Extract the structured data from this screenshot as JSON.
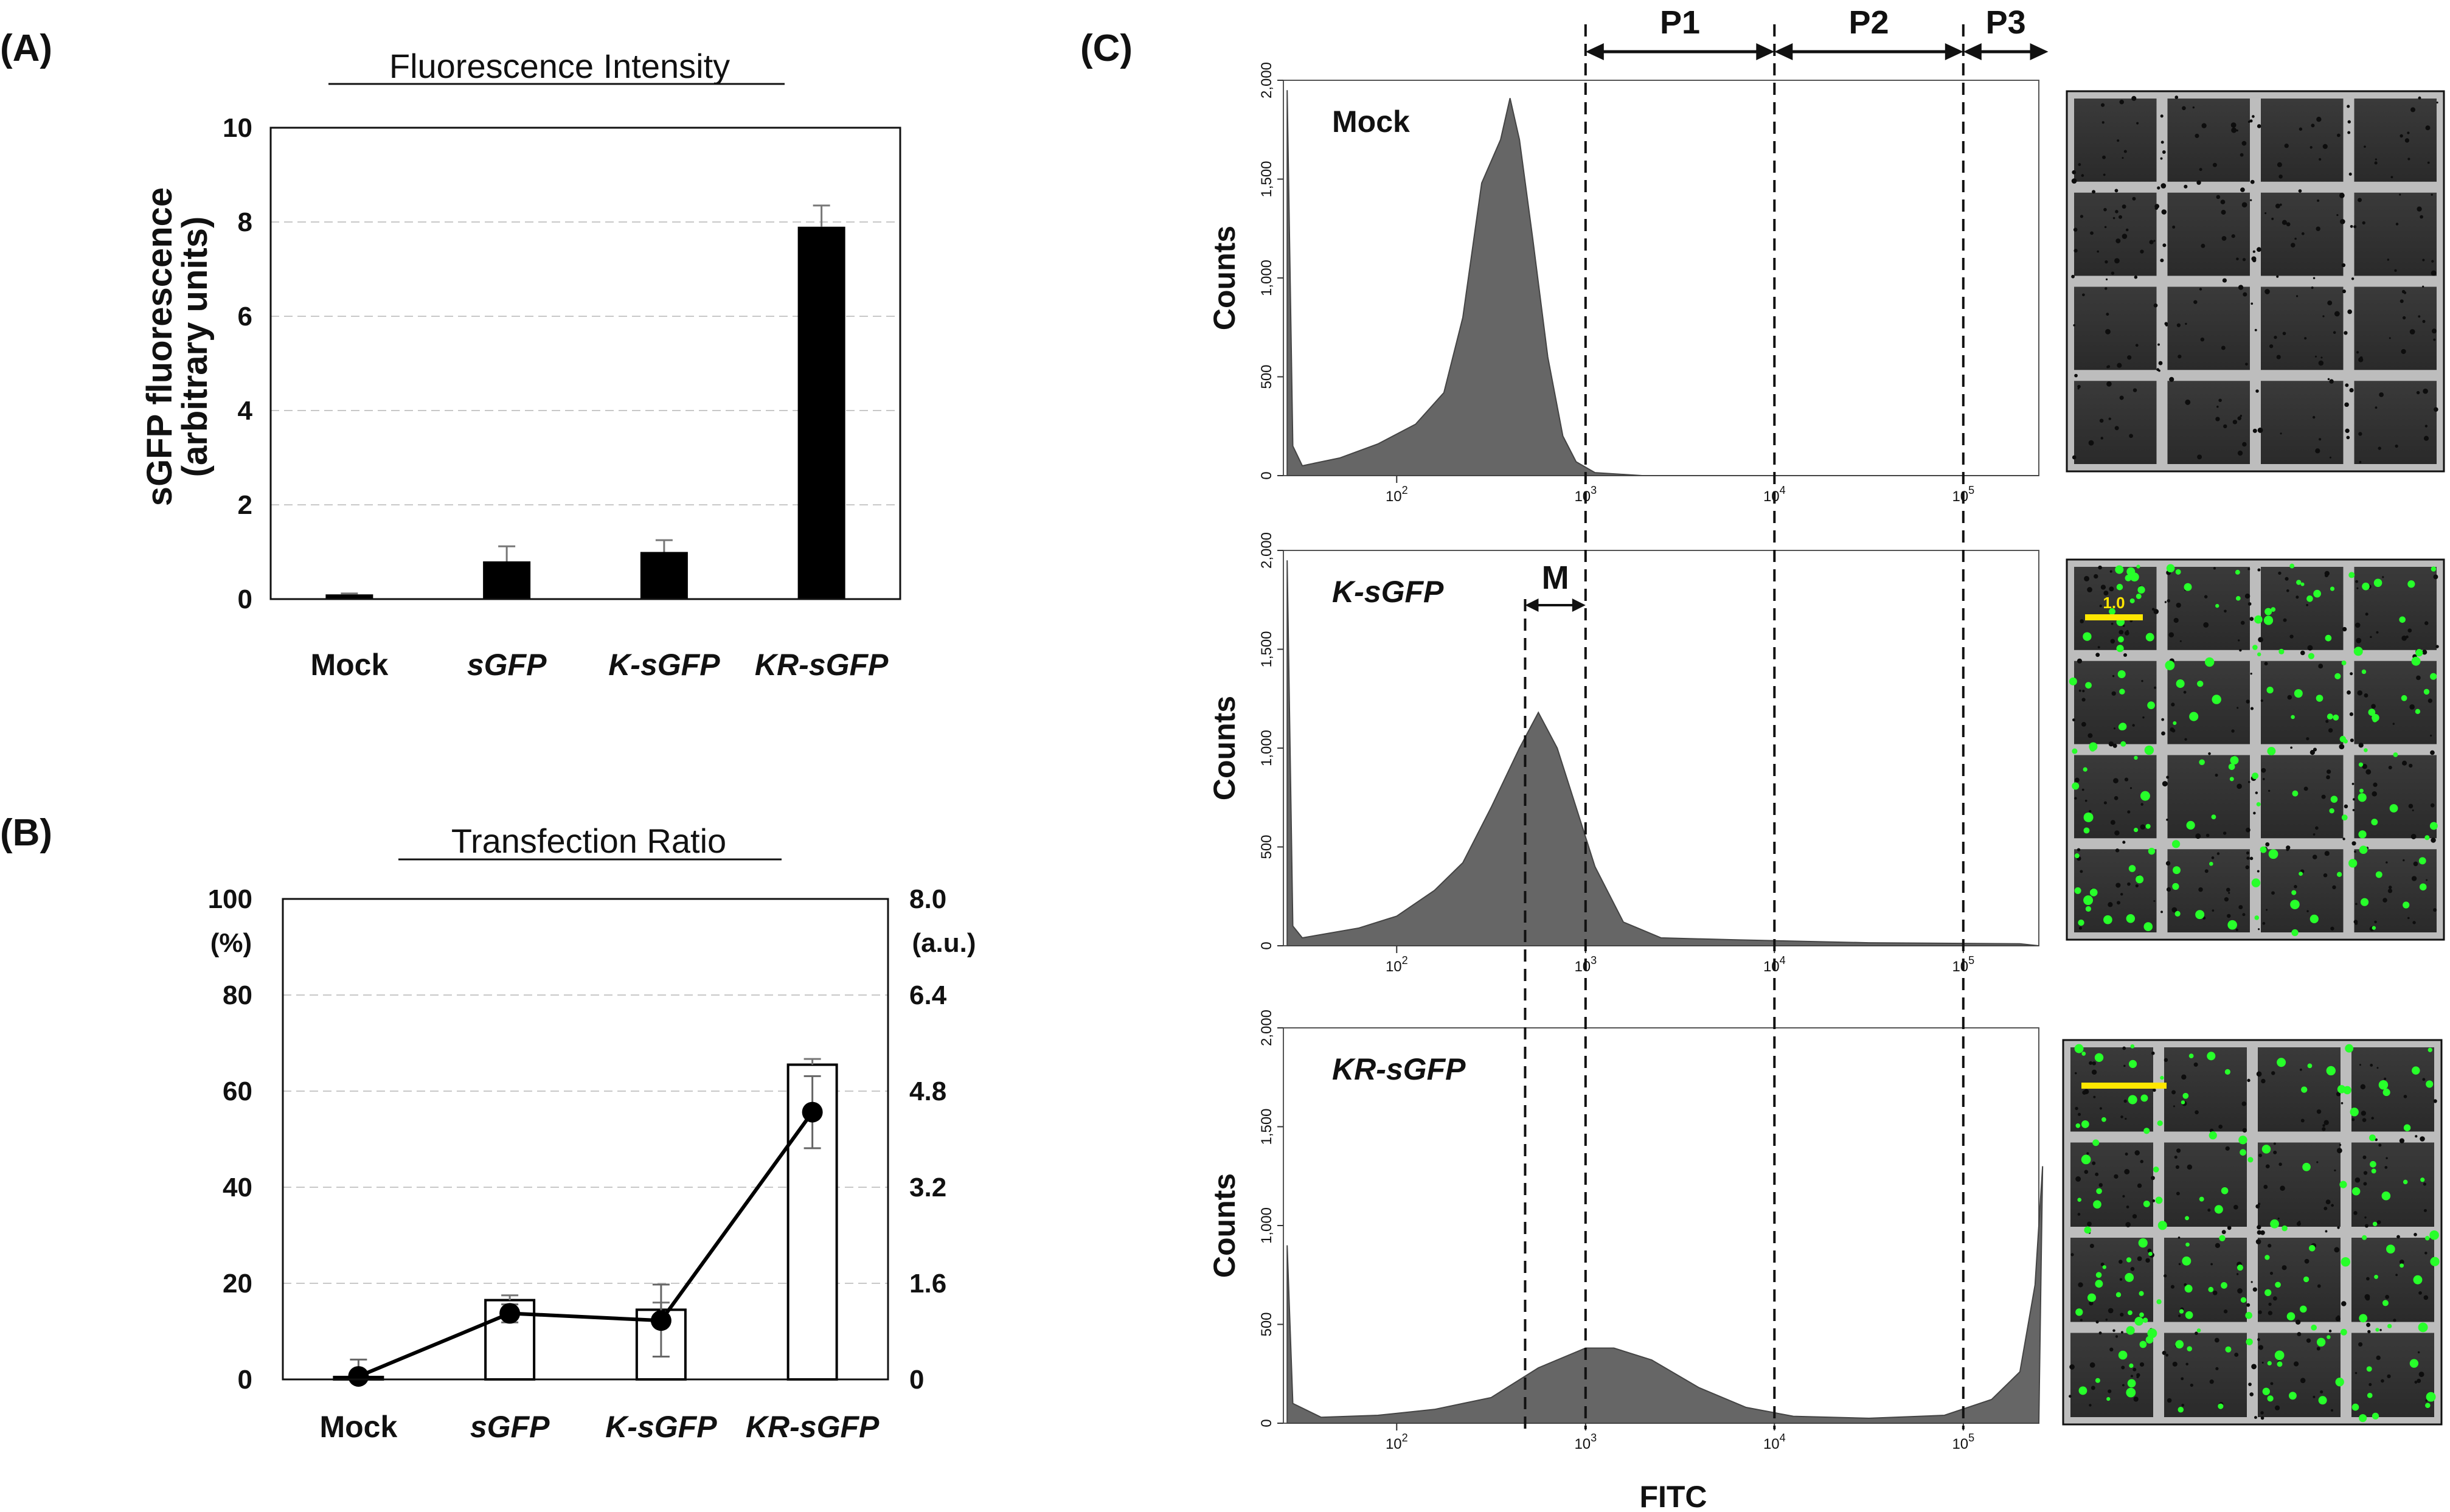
{
  "panels": {
    "A": {
      "label": "(A)",
      "chart_data": {
        "type": "bar",
        "title": "Fluorescence Intensity",
        "ylabel": "sGFP fluorescence",
        "ylabel2": "(arbitrary units)",
        "categories": [
          "Mock",
          "sGFP",
          "K-sGFP",
          "KR-sGFP"
        ],
        "values": [
          0.1,
          0.8,
          1.0,
          7.9
        ],
        "errors": [
          0.02,
          0.32,
          0.25,
          0.45
        ],
        "ylim": [
          0,
          10
        ],
        "yticks": [
          0,
          2,
          4,
          6,
          8,
          10
        ],
        "ytick_labels": [
          "0",
          "2",
          "4",
          "6",
          "8",
          "10"
        ],
        "grid": true
      }
    },
    "B": {
      "label": "(B)",
      "chart_data": {
        "type": "bar",
        "title": "Transfection Ratio",
        "categories": [
          "Mock",
          "sGFP",
          "K-sGFP",
          "KR-sGFP"
        ],
        "series": [
          {
            "name": "Transfection ratio (%)",
            "kind": "bar",
            "values": [
              0.5,
              16.5,
              14.5,
              65.5
            ],
            "errors": [
              0.3,
              1.0,
              1.5,
              1.2
            ]
          },
          {
            "name": "Fluorescence (a.u.)",
            "kind": "line",
            "values": [
              0.05,
              1.1,
              0.98,
              4.45
            ],
            "errors": [
              0.28,
              0.15,
              0.6,
              0.6
            ]
          }
        ],
        "ylim_left": [
          0,
          100
        ],
        "ylim_right": [
          0,
          8.0
        ],
        "yticks_left": [
          "0",
          "20",
          "40",
          "60",
          "80",
          "100"
        ],
        "yticks_right": [
          "0",
          "1.6",
          "3.2",
          "4.8",
          "6.4",
          "8.0"
        ],
        "left_unit": "(%)",
        "right_unit": "(a.u.)",
        "grid": true
      }
    },
    "C": {
      "label": "(C)",
      "chart_data": {
        "type": "area",
        "xlabel": "FITC",
        "ylabel": "Counts",
        "x_scale": "log",
        "xlim": [
          1.4,
          5.4
        ],
        "ylim": [
          0,
          2000
        ],
        "xticks": [
          {
            "base": "10",
            "exp": "2"
          },
          {
            "base": "10",
            "exp": "3"
          },
          {
            "base": "10",
            "exp": "4"
          },
          {
            "base": "10",
            "exp": "5"
          }
        ],
        "yticks": [
          "0",
          "500",
          "1,000",
          "1,500",
          "2,000"
        ],
        "gates": [
          {
            "name": "P1",
            "from_log": 3.0,
            "to_log": 4.0
          },
          {
            "name": "P2",
            "from_log": 4.0,
            "to_log": 5.0
          },
          {
            "name": "P3",
            "from_log": 5.0,
            "to_log": 5.45
          }
        ],
        "marker": {
          "name": "M",
          "from_log": 2.68,
          "to_log": 3.0
        },
        "histograms": [
          {
            "sample": "Mock",
            "italic": false,
            "points": [
              [
                1.42,
                1950
              ],
              [
                1.45,
                150
              ],
              [
                1.5,
                50
              ],
              [
                1.7,
                90
              ],
              [
                1.9,
                160
              ],
              [
                2.1,
                260
              ],
              [
                2.25,
                420
              ],
              [
                2.35,
                800
              ],
              [
                2.45,
                1480
              ],
              [
                2.55,
                1700
              ],
              [
                2.6,
                1910
              ],
              [
                2.65,
                1700
              ],
              [
                2.72,
                1200
              ],
              [
                2.8,
                600
              ],
              [
                2.88,
                200
              ],
              [
                2.95,
                70
              ],
              [
                3.05,
                15
              ],
              [
                3.3,
                0
              ],
              [
                5.4,
                0
              ]
            ]
          },
          {
            "sample": "K-sGFP",
            "italic": true,
            "points": [
              [
                1.42,
                1950
              ],
              [
                1.45,
                100
              ],
              [
                1.5,
                40
              ],
              [
                1.8,
                90
              ],
              [
                2.0,
                150
              ],
              [
                2.2,
                280
              ],
              [
                2.35,
                420
              ],
              [
                2.5,
                700
              ],
              [
                2.65,
                1000
              ],
              [
                2.75,
                1180
              ],
              [
                2.85,
                1000
              ],
              [
                2.95,
                700
              ],
              [
                3.05,
                400
              ],
              [
                3.2,
                120
              ],
              [
                3.4,
                40
              ],
              [
                3.8,
                30
              ],
              [
                4.5,
                15
              ],
              [
                5.3,
                10
              ],
              [
                5.4,
                0
              ]
            ]
          },
          {
            "sample": "KR-sGFP",
            "italic": true,
            "points": [
              [
                1.42,
                900
              ],
              [
                1.45,
                100
              ],
              [
                1.6,
                30
              ],
              [
                1.9,
                40
              ],
              [
                2.2,
                70
              ],
              [
                2.5,
                130
              ],
              [
                2.75,
                280
              ],
              [
                3.0,
                380
              ],
              [
                3.15,
                380
              ],
              [
                3.35,
                320
              ],
              [
                3.6,
                180
              ],
              [
                3.85,
                80
              ],
              [
                4.1,
                35
              ],
              [
                4.5,
                25
              ],
              [
                4.9,
                40
              ],
              [
                5.15,
                120
              ],
              [
                5.3,
                260
              ],
              [
                5.38,
                700
              ],
              [
                5.42,
                1300
              ],
              [
                5.4,
                0
              ]
            ]
          }
        ]
      },
      "images": [
        {
          "name": "Mock",
          "green_dots": false,
          "scale_label": ""
        },
        {
          "name": "K-sGFP",
          "green_dots": true,
          "scale_label": "1.0"
        },
        {
          "name": "KR-sGFP",
          "green_dots": true,
          "scale_label": ""
        }
      ]
    }
  }
}
